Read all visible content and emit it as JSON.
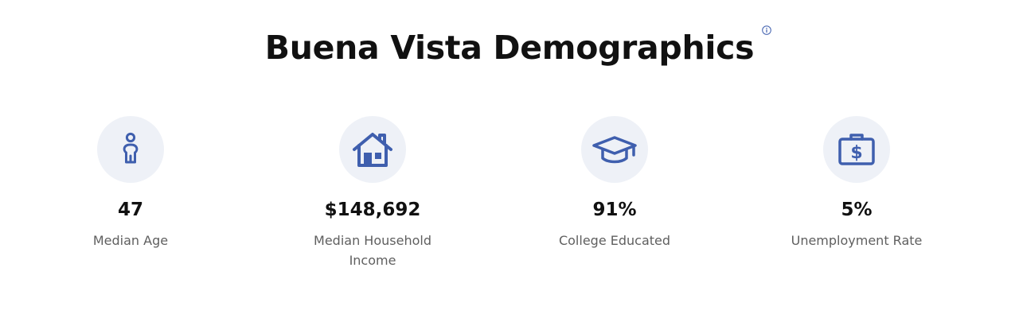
{
  "page": {
    "title": "Buena Vista Demographics",
    "info_icon": "info-icon"
  },
  "colors": {
    "icon_blue": "#3f5fae",
    "icon_background": "#eef1f7",
    "value_text": "#111111",
    "label_text": "#5f5f5f"
  },
  "stats": [
    {
      "icon": "person-icon",
      "value": "47",
      "label": "Median Age"
    },
    {
      "icon": "house-icon",
      "value": "$148,692",
      "label": "Median Household Income"
    },
    {
      "icon": "graduation-cap-icon",
      "value": "91%",
      "label": "College Educated"
    },
    {
      "icon": "money-briefcase-icon",
      "value": "5%",
      "label": "Unemployment Rate"
    }
  ]
}
